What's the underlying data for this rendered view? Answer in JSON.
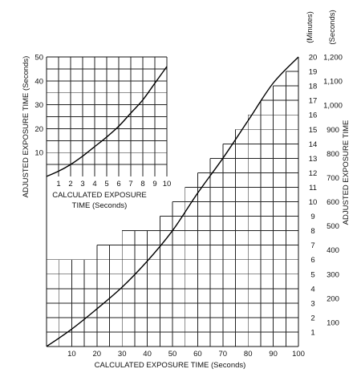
{
  "chart_data": [
    {
      "id": "main",
      "type": "line",
      "xlabel": "CALCULATED EXPOSURE TIME (Seconds)",
      "ylabel": "ADJUSTED EXPOSURE TIME",
      "x_ticks": [
        10,
        20,
        30,
        40,
        50,
        60,
        70,
        80,
        90,
        100
      ],
      "xlim": [
        0,
        100
      ],
      "y_minutes_ticks": [
        1,
        2,
        3,
        4,
        5,
        6,
        7,
        8,
        9,
        10,
        11,
        12,
        13,
        14,
        15,
        16,
        17,
        18,
        19,
        20
      ],
      "y_minutes_header": "(Minutes)",
      "y_seconds_ticks": [
        "100",
        "200",
        "300",
        "400",
        "500",
        "600",
        "700",
        "800",
        "900",
        "1,000",
        "1,100",
        "1,200"
      ],
      "y_seconds_header": "(Seconds)",
      "ylim_minutes": [
        0,
        20
      ],
      "x": [
        0,
        10,
        20,
        30,
        40,
        50,
        60,
        70,
        80,
        90,
        100
      ],
      "y_minutes": [
        0.0,
        1.2,
        2.6,
        4.1,
        5.9,
        8.0,
        10.6,
        13.0,
        15.6,
        18.2,
        20.0
      ]
    },
    {
      "id": "inset",
      "type": "line",
      "xlabel": "CALCULATED EXPOSURE TIME (Seconds)",
      "ylabel": "ADJUSTED EXPOSURE TIME (Seconds)",
      "x_ticks": [
        1,
        2,
        3,
        4,
        5,
        6,
        7,
        8,
        9,
        10
      ],
      "xlim": [
        0,
        10
      ],
      "y_ticks": [
        10,
        20,
        30,
        40,
        50
      ],
      "ylim": [
        0,
        50
      ],
      "x": [
        0,
        1,
        2,
        3,
        4,
        5,
        6,
        7,
        8,
        9,
        10
      ],
      "y_seconds": [
        0.0,
        2.2,
        5.0,
        8.5,
        12.5,
        16.5,
        21.0,
        26.5,
        32.0,
        39.0,
        46.0
      ]
    }
  ],
  "axis_texts": {
    "bottom_label": "CALCULATED EXPOSURE TIME (Seconds)",
    "left_label": "ADJUSTED EXPOSURE TIME (Seconds)",
    "right_label": "ADJUSTED EXPOSURE TIME",
    "minutes_header": "(Minutes)",
    "seconds_header": "(Seconds)",
    "inset_label_line1": "CALCULATED EXPOSURE",
    "inset_label_line2": "TIME (Seconds)"
  }
}
